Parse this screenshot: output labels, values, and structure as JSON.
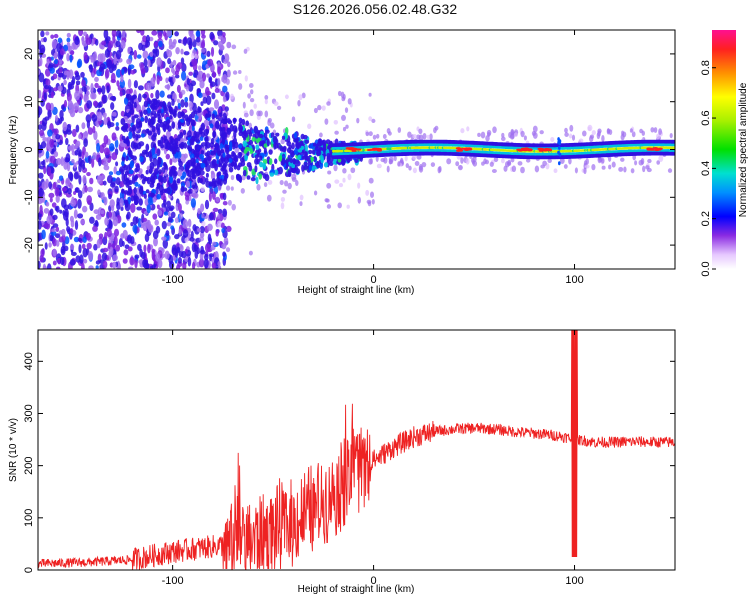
{
  "title": "S126.2026.056.02.48.G32",
  "chart_data": [
    {
      "type": "heatmap",
      "xlabel": "Height of straight line (km)",
      "ylabel": "Frequency (Hz)",
      "xlim": [
        -167,
        150
      ],
      "ylim": [
        -25,
        25
      ],
      "xticks": [
        -100,
        0,
        100
      ],
      "yticks": [
        -20,
        -10,
        0,
        10,
        20
      ],
      "xtick_labels": [
        "-100",
        "0",
        "100"
      ],
      "ytick_labels": [
        "-20",
        "-10",
        "0",
        "10",
        "20"
      ],
      "colorbar": {
        "label": "Normalized spectral amplitude",
        "range": [
          0,
          0.95
        ],
        "ticks": [
          0.0,
          0.2,
          0.4,
          0.6,
          0.8
        ],
        "tick_labels": [
          "0.0",
          "0.2",
          "0.4",
          "0.6",
          "0.8"
        ]
      },
      "description_points": {
        "ridge_frequency_hz": 0,
        "ridge_start_km": -75,
        "scatter_region_km": [
          -167,
          -75
        ],
        "peak_locations_km": [
          -10,
          0,
          45,
          75,
          85,
          140
        ]
      }
    },
    {
      "type": "line",
      "xlabel": "Height of straight line (km)",
      "ylabel": "SNR (10 * v/v)",
      "xlim": [
        -167,
        150
      ],
      "ylim": [
        0,
        460
      ],
      "xticks": [
        -100,
        0,
        100
      ],
      "yticks": [
        0,
        100,
        200,
        300,
        400
      ],
      "xtick_labels": [
        "-100",
        "0",
        "100"
      ],
      "ytick_labels": [
        "0",
        "100",
        "200",
        "300",
        "400"
      ],
      "series": [
        {
          "name": "SNR",
          "color": "#ee2222",
          "x": [
            -167,
            -140,
            -120,
            -100,
            -80,
            -70,
            -60,
            -50,
            -40,
            -30,
            -20,
            -10,
            0,
            10,
            20,
            30,
            40,
            50,
            60,
            70,
            80,
            90,
            95,
            100,
            105,
            110,
            120,
            130,
            140,
            150
          ],
          "y": [
            12,
            15,
            20,
            35,
            45,
            50,
            60,
            75,
            90,
            115,
            150,
            180,
            210,
            235,
            255,
            265,
            270,
            272,
            270,
            265,
            262,
            258,
            255,
            250,
            248,
            245,
            245,
            246,
            245,
            245
          ]
        }
      ],
      "spike": {
        "x": 100,
        "max": 460,
        "min": 25
      }
    }
  ]
}
